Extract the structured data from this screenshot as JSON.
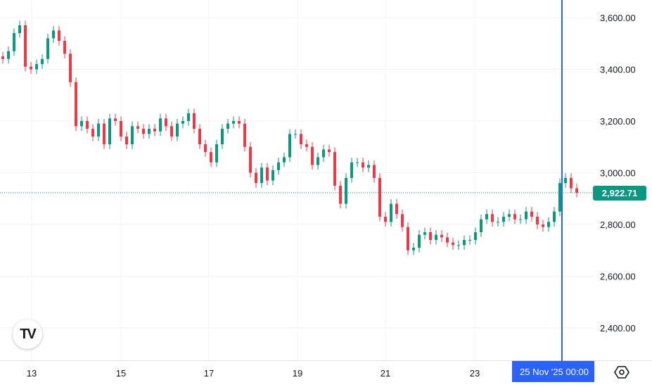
{
  "chart_data": {
    "type": "candlestick",
    "ylim": [
      2300,
      3650
    ],
    "yticks": [
      "3,600.00",
      "3,400.00",
      "3,200.00",
      "3,000.00",
      "2,800.00",
      "2,600.00",
      "2,400.00"
    ],
    "ytick_values": [
      3600,
      3400,
      3200,
      3000,
      2800,
      2600,
      2400
    ],
    "xticks": [
      "13",
      "15",
      "17",
      "19",
      "21",
      "23"
    ],
    "first_open": 3450,
    "close": [
      3440,
      3470,
      3540,
      3570,
      3410,
      3400,
      3420,
      3440,
      3520,
      3550,
      3510,
      3460,
      3350,
      3180,
      3200,
      3170,
      3140,
      3190,
      3110,
      3210,
      3200,
      3140,
      3110,
      3180,
      3170,
      3150,
      3170,
      3160,
      3210,
      3180,
      3140,
      3190,
      3200,
      3230,
      3170,
      3110,
      3080,
      3040,
      3110,
      3170,
      3190,
      3200,
      3190,
      3100,
      3000,
      2960,
      3020,
      2970,
      3010,
      3040,
      3060,
      3150,
      3150,
      3110,
      3100,
      3030,
      3060,
      3090,
      3080,
      2950,
      2880,
      2980,
      3040,
      3040,
      3020,
      3030,
      2980,
      2830,
      2810,
      2880,
      2840,
      2790,
      2700,
      2710,
      2760,
      2770,
      2740,
      2760,
      2750,
      2730,
      2720,
      2720,
      2740,
      2740,
      2770,
      2820,
      2840,
      2810,
      2810,
      2830,
      2840,
      2820,
      2820,
      2850,
      2830,
      2800,
      2790,
      2810,
      2850,
      2960,
      2980,
      2940,
      2922.71
    ],
    "last_price": "2,922.71",
    "crosshair_time": "25 Nov '25   00:00",
    "colors": {
      "up": "#089981",
      "down": "#f23645",
      "crosshair": "#2962ff"
    }
  },
  "logo": "TV"
}
